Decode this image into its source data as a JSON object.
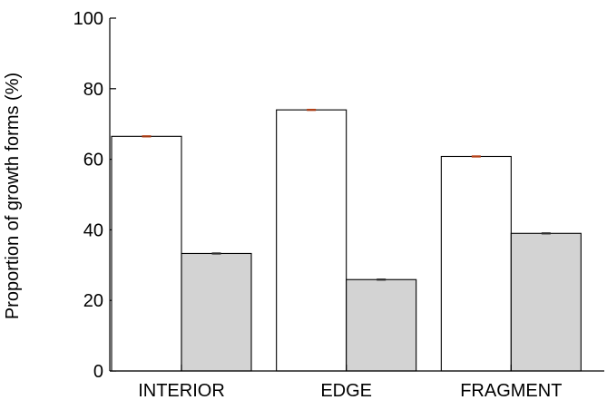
{
  "chart_data": {
    "type": "bar",
    "title": "",
    "xlabel": "",
    "ylabel": "Proportion of growth forms (%)",
    "ylim": [
      0,
      100
    ],
    "yticks": [
      "0",
      "20",
      "40",
      "60",
      "80",
      "100"
    ],
    "categories": [
      "INTERIOR",
      "EDGE",
      "FRAGMENT"
    ],
    "series": [
      {
        "color": "#ffffff",
        "values": [
          66.5,
          74.0,
          60.8
        ],
        "errors": [
          0.15,
          0.15,
          0.15
        ],
        "error_color": "#b5431a"
      },
      {
        "color": "#d3d3d3",
        "values": [
          33.3,
          25.9,
          39.0
        ],
        "errors": [
          0.15,
          0.15,
          0.15
        ],
        "error_color": "#333333"
      }
    ],
    "grid": false,
    "legend": "none"
  }
}
